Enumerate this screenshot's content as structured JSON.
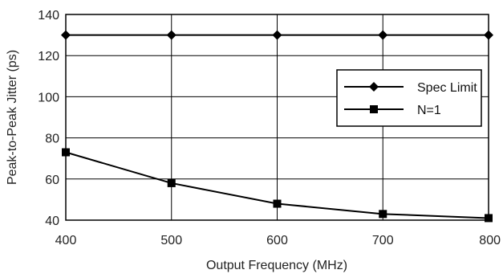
{
  "chart_data": {
    "type": "line",
    "xlabel": "Output Frequency (MHz)",
    "ylabel": "Peak-to-Peak Jitter (ps)",
    "x": [
      400,
      500,
      600,
      700,
      800
    ],
    "xlim": [
      400,
      800
    ],
    "ylim": [
      40,
      140
    ],
    "xticks": [
      400,
      500,
      600,
      700,
      800
    ],
    "yticks": [
      40,
      60,
      80,
      100,
      120,
      140
    ],
    "grid": true,
    "legend_position": "right",
    "series": [
      {
        "name": "Spec Limit",
        "marker": "diamond",
        "values": [
          130,
          130,
          130,
          130,
          130
        ]
      },
      {
        "name": "N=1",
        "marker": "square",
        "values": [
          73,
          58,
          48,
          43,
          41
        ]
      }
    ]
  }
}
